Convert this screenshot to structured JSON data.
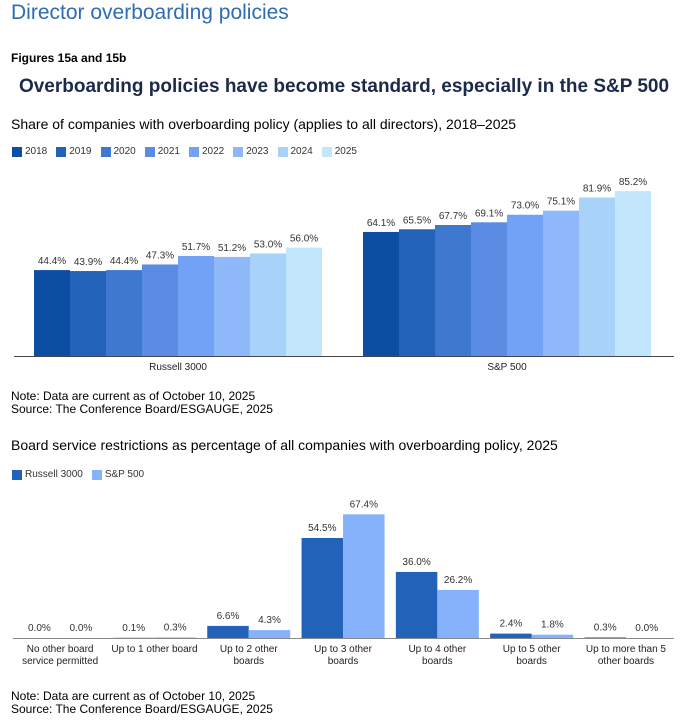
{
  "page": {
    "title": "Director overboarding policies",
    "figure_label": "Figures 15a and 15b",
    "headline": "Overboarding policies have become standard, especially in the S&P 500"
  },
  "chart_data": [
    {
      "type": "bar",
      "title": "Share of companies with overboarding policy (applies to all directors), 2018–2025",
      "xlabel": "",
      "ylabel": "",
      "ylim": [
        0,
        100
      ],
      "grid": false,
      "legend_position": "top-left",
      "categories": [
        "Russell 3000",
        "S&P 500"
      ],
      "series": [
        {
          "name": "2018",
          "color": "#0b4ea2",
          "values": [
            44.4,
            64.1
          ],
          "labels": [
            "44.4%",
            "64.1%"
          ]
        },
        {
          "name": "2019",
          "color": "#2262b8",
          "values": [
            43.9,
            65.5
          ],
          "labels": [
            "43.9%",
            "65.5%"
          ]
        },
        {
          "name": "2020",
          "color": "#3f78cf",
          "values": [
            44.4,
            67.7
          ],
          "labels": [
            "44.4%",
            "67.7%"
          ]
        },
        {
          "name": "2021",
          "color": "#5a8ce3",
          "values": [
            47.3,
            69.1
          ],
          "labels": [
            "47.3%",
            "69.1%"
          ]
        },
        {
          "name": "2022",
          "color": "#72a2f6",
          "values": [
            51.7,
            73.0
          ],
          "labels": [
            "51.7%",
            "73.0%"
          ]
        },
        {
          "name": "2023",
          "color": "#8fb8fb",
          "values": [
            51.2,
            75.1
          ],
          "labels": [
            "51.2%",
            "75.1%"
          ]
        },
        {
          "name": "2024",
          "color": "#a9d2fb",
          "values": [
            53.0,
            81.9
          ],
          "labels": [
            "53.0%",
            "81.9%"
          ]
        },
        {
          "name": "2025",
          "color": "#c2e6fb",
          "values": [
            56.0,
            85.2
          ],
          "labels": [
            "56.0%",
            "85.2%"
          ]
        }
      ],
      "note": "Note: Data are current as of October 10, 2025",
      "source": "Source: The Conference Board/ESGAUGE, 2025"
    },
    {
      "type": "bar",
      "title": "Board service restrictions as percentage of all companies with overboarding policy, 2025",
      "xlabel": "",
      "ylabel": "",
      "ylim": [
        0,
        100
      ],
      "grid": false,
      "legend_position": "top-left",
      "categories": [
        [
          "No other board",
          "service permitted"
        ],
        [
          "Up to 1 other board"
        ],
        [
          "Up to 2 other",
          "boards"
        ],
        [
          "Up to 3 other",
          "boards"
        ],
        [
          "Up to 4 other",
          "boards"
        ],
        [
          "Up to 5 other",
          "boards"
        ],
        [
          "Up to more than 5",
          "other boards"
        ]
      ],
      "series": [
        {
          "name": "Russell 3000",
          "color": "#2262b8",
          "values": [
            0.0,
            0.1,
            6.6,
            54.5,
            36.0,
            2.4,
            0.3
          ],
          "labels": [
            "0.0%",
            "0.1%",
            "6.6%",
            "54.5%",
            "36.0%",
            "2.4%",
            "0.3%"
          ]
        },
        {
          "name": "S&P 500",
          "color": "#86b2fb",
          "values": [
            0.0,
            0.3,
            4.3,
            67.4,
            26.2,
            1.8,
            0.0
          ],
          "labels": [
            "0.0%",
            "0.3%",
            "4.3%",
            "67.4%",
            "26.2%",
            "1.8%",
            "0.0%"
          ]
        }
      ],
      "note": "Note: Data are current as of October 10, 2025",
      "source": "Source: The Conference Board/ESGAUGE, 2025"
    }
  ]
}
